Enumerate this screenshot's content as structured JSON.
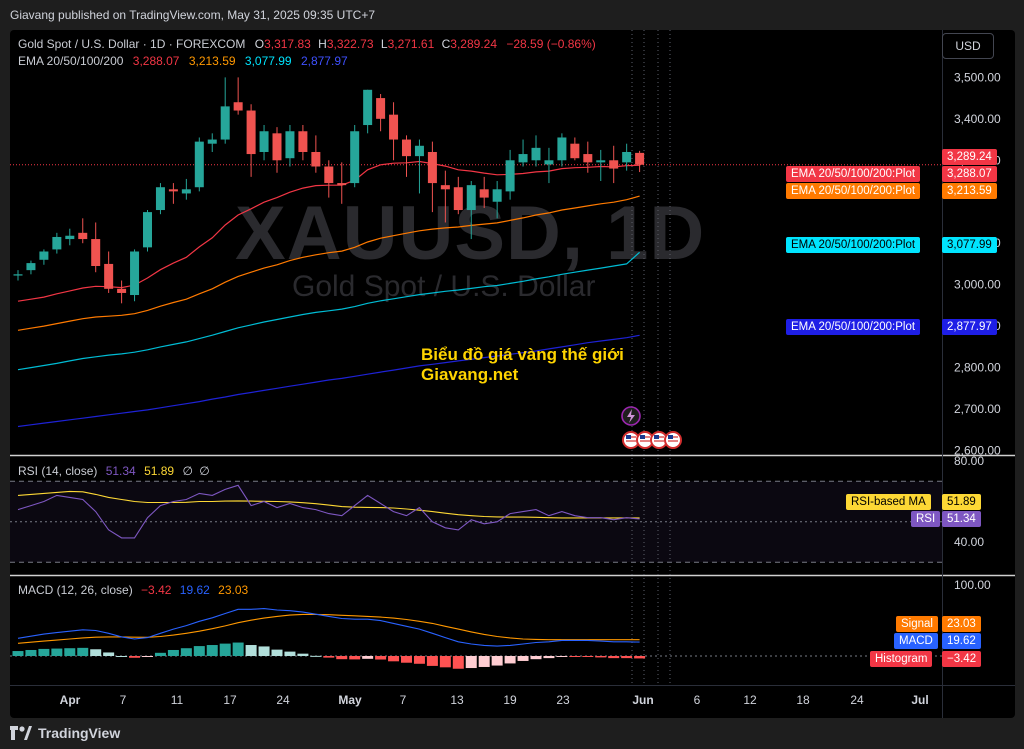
{
  "header": {
    "published": "Giavang published on TradingView.com, May 31, 2025 09:35 UTC+7"
  },
  "toolbar": {
    "currency": "USD"
  },
  "symbol": {
    "title": "Gold Spot / U.S. Dollar · 1D · FOREXCOM",
    "o_label": "O",
    "o": "3,317.83",
    "h_label": "H",
    "h": "3,322.73",
    "l_label": "L",
    "l": "3,271.61",
    "c_label": "C",
    "c": "3,289.24",
    "change": "−28.59 (−0.86%)"
  },
  "ema_legend": {
    "label": "EMA 20/50/100/200",
    "v20": "3,288.07",
    "v50": "3,213.59",
    "v100": "3,077.99",
    "v200": "2,877.97"
  },
  "watermark": {
    "ticker": "XAUUSD, 1D",
    "name": "Gold Spot / U.S. Dollar"
  },
  "annotation": {
    "line1": "Biểu đồ giá vàng thế giới",
    "line2": "Giavang.net"
  },
  "price_axis": [
    "3,500.00",
    "3,400.00",
    "3,300.00",
    "3,100.00",
    "3,000.00",
    "2,900.00",
    "2,800.00",
    "2,700.00",
    "2,600.00"
  ],
  "price_tags": [
    {
      "label": "",
      "value": "3,289.24",
      "color": "#f23645",
      "price": 3289.24
    },
    {
      "label": "EMA 20/50/100/200:Plot",
      "value": "3,288.07",
      "color": "#f23645",
      "price": 3288.07
    },
    {
      "label": "EMA 20/50/100/200:Plot",
      "value": "3,213.59",
      "color": "#ff7a00",
      "price": 3213.59
    },
    {
      "label": "EMA 20/50/100/200:Plot",
      "value": "3,077.99",
      "color": "#00e5ff",
      "price": 3077.99
    },
    {
      "label": "EMA 20/50/100/200:Plot",
      "value": "2,877.97",
      "color": "#1e1ee6",
      "price": 2877.97
    }
  ],
  "rsi": {
    "legend": "RSI (14, close)",
    "value": "51.34",
    "ma": "51.89",
    "na1": "∅",
    "na2": "∅",
    "axis": [
      "80.00",
      "40.00"
    ],
    "tag_ma_label": "RSI-based MA",
    "tag_ma_value": "51.89",
    "tag_rsi_label": "RSI",
    "tag_rsi_value": "51.34",
    "colors": {
      "rsi": "#7e57c2",
      "ma": "#fdd835"
    }
  },
  "macd": {
    "legend": "MACD (12, 26, close)",
    "hist": "−3.42",
    "macd": "19.62",
    "signal": "23.03",
    "axis": [
      "100.00"
    ],
    "tag_signal_label": "Signal",
    "tag_signal_value": "23.03",
    "tag_macd_label": "MACD",
    "tag_macd_value": "19.62",
    "tag_hist_label": "Histogram",
    "tag_hist_value": "−3.42"
  },
  "time_axis": [
    "Apr",
    "7",
    "11",
    "17",
    "24",
    "May",
    "7",
    "13",
    "19",
    "23",
    "Jun",
    "6",
    "12",
    "18",
    "24",
    "Jul"
  ],
  "footer": {
    "brand": "TradingView"
  },
  "chart_data": {
    "type": "candlestick",
    "title": "Gold Spot / U.S. Dollar · 1D · FOREXCOM",
    "ylim": [
      2560,
      3560
    ],
    "ohlc": [
      [
        3022,
        3035,
        3010,
        3025
      ],
      [
        3035,
        3058,
        3025,
        3052
      ],
      [
        3060,
        3085,
        3048,
        3080
      ],
      [
        3085,
        3125,
        3075,
        3115
      ],
      [
        3110,
        3135,
        3095,
        3118
      ],
      [
        3125,
        3160,
        3100,
        3110
      ],
      [
        3110,
        3150,
        3030,
        3045
      ],
      [
        3050,
        3080,
        2980,
        2990
      ],
      [
        2990,
        3010,
        2955,
        2980
      ],
      [
        2975,
        3085,
        2960,
        3080
      ],
      [
        3090,
        3180,
        3080,
        3175
      ],
      [
        3180,
        3245,
        3170,
        3235
      ],
      [
        3230,
        3245,
        3195,
        3225
      ],
      [
        3220,
        3255,
        3205,
        3230
      ],
      [
        3235,
        3355,
        3225,
        3345
      ],
      [
        3340,
        3365,
        3320,
        3350
      ],
      [
        3350,
        3500,
        3340,
        3430
      ],
      [
        3440,
        3500,
        3410,
        3420
      ],
      [
        3420,
        3435,
        3260,
        3315
      ],
      [
        3320,
        3385,
        3300,
        3370
      ],
      [
        3365,
        3380,
        3270,
        3300
      ],
      [
        3305,
        3385,
        3285,
        3370
      ],
      [
        3370,
        3385,
        3300,
        3320
      ],
      [
        3320,
        3360,
        3270,
        3285
      ],
      [
        3285,
        3300,
        3210,
        3245
      ],
      [
        3245,
        3295,
        3195,
        3240
      ],
      [
        3245,
        3385,
        3235,
        3370
      ],
      [
        3385,
        3470,
        3365,
        3470
      ],
      [
        3450,
        3460,
        3370,
        3400
      ],
      [
        3410,
        3440,
        3300,
        3350
      ],
      [
        3350,
        3360,
        3260,
        3310
      ],
      [
        3310,
        3350,
        3220,
        3335
      ],
      [
        3320,
        3345,
        3175,
        3245
      ],
      [
        3240,
        3275,
        3150,
        3230
      ],
      [
        3235,
        3260,
        3170,
        3180
      ],
      [
        3180,
        3250,
        3110,
        3240
      ],
      [
        3230,
        3260,
        3185,
        3210
      ],
      [
        3200,
        3250,
        3160,
        3230
      ],
      [
        3225,
        3325,
        3205,
        3300
      ],
      [
        3295,
        3350,
        3285,
        3315
      ],
      [
        3300,
        3360,
        3285,
        3330
      ],
      [
        3290,
        3330,
        3245,
        3300
      ],
      [
        3300,
        3365,
        3285,
        3355
      ],
      [
        3340,
        3355,
        3300,
        3305
      ],
      [
        3315,
        3345,
        3270,
        3295
      ],
      [
        3295,
        3325,
        3250,
        3300
      ],
      [
        3300,
        3335,
        3245,
        3280
      ],
      [
        3295,
        3340,
        3275,
        3320
      ],
      [
        3317.83,
        3322.73,
        3271.61,
        3289.24
      ]
    ],
    "ema": [
      {
        "name": "EMA 20",
        "color": "#f23645",
        "values": [
          2960,
          2965,
          2970,
          2978,
          2985,
          2992,
          2996,
          2995,
          2993,
          2999,
          3016,
          3036,
          3052,
          3066,
          3091,
          3113,
          3144,
          3168,
          3183,
          3199,
          3210,
          3223,
          3233,
          3239,
          3240,
          3240,
          3252,
          3277,
          3289,
          3293,
          3294,
          3297,
          3292,
          3286,
          3277,
          3274,
          3269,
          3265,
          3266,
          3268,
          3272,
          3274,
          3280,
          3282,
          3283,
          3285,
          3284,
          3287,
          3288
        ]
      },
      {
        "name": "EMA 50",
        "color": "#ff7a00",
        "values": [
          2890,
          2895,
          2900,
          2906,
          2912,
          2918,
          2922,
          2924,
          2926,
          2930,
          2938,
          2948,
          2957,
          2965,
          2978,
          2990,
          3006,
          3020,
          3030,
          3040,
          3048,
          3058,
          3066,
          3072,
          3077,
          3081,
          3090,
          3103,
          3112,
          3118,
          3124,
          3130,
          3134,
          3137,
          3139,
          3143,
          3146,
          3149,
          3155,
          3161,
          3168,
          3173,
          3180,
          3185,
          3190,
          3195,
          3199,
          3205,
          3213.59
        ]
      },
      {
        "name": "EMA 100",
        "color": "#00bcd4",
        "values": [
          2795,
          2800,
          2805,
          2810,
          2816,
          2822,
          2826,
          2830,
          2833,
          2837,
          2843,
          2850,
          2856,
          2862,
          2870,
          2878,
          2887,
          2896,
          2903,
          2910,
          2916,
          2922,
          2928,
          2933,
          2937,
          2941,
          2947,
          2955,
          2961,
          2966,
          2971,
          2976,
          2980,
          2984,
          2987,
          2991,
          2995,
          2998,
          3003,
          3008,
          3014,
          3019,
          3025,
          3030,
          3035,
          3040,
          3045,
          3050,
          3077.99
        ]
      },
      {
        "name": "EMA 200",
        "color": "#1e22d6",
        "values": [
          2658,
          2662,
          2666,
          2670,
          2674,
          2678,
          2682,
          2686,
          2690,
          2694,
          2698,
          2703,
          2708,
          2713,
          2718,
          2724,
          2729,
          2735,
          2740,
          2745,
          2750,
          2755,
          2760,
          2765,
          2770,
          2774,
          2779,
          2784,
          2789,
          2794,
          2799,
          2804,
          2808,
          2812,
          2816,
          2820,
          2824,
          2828,
          2832,
          2836,
          2840,
          2845,
          2850,
          2855,
          2860,
          2864,
          2868,
          2872,
          2877.97
        ]
      }
    ],
    "rsi_values": [
      56,
      58,
      60,
      63,
      62,
      61,
      55,
      46,
      42,
      42,
      52,
      58,
      60,
      61,
      64,
      63,
      66,
      68,
      58,
      60,
      57,
      59,
      57,
      56,
      54,
      53,
      58,
      63,
      59,
      55,
      53,
      57,
      50,
      47,
      46,
      51,
      49,
      50,
      54,
      55,
      56,
      53,
      55,
      53,
      52,
      52,
      51,
      52,
      51.34
    ],
    "rsi_ma_values": [
      63,
      63.5,
      64,
      64.5,
      65,
      64.8,
      63.5,
      62,
      61,
      60,
      59.5,
      59.5,
      59.5,
      59.6,
      60,
      60,
      60.2,
      60.3,
      60.2,
      60.1,
      60,
      59.8,
      59.4,
      58.9,
      58.2,
      57.5,
      57.2,
      57.1,
      57,
      56.8,
      56.3,
      55.7,
      55,
      54.2,
      53.5,
      53,
      52.6,
      52.4,
      52.3,
      52.3,
      52.2,
      52,
      51.9,
      51.9,
      51.9,
      51.9,
      51.9,
      51.9,
      51.89
    ],
    "macd_values": [
      25,
      28,
      31,
      33,
      35,
      37,
      36,
      32,
      27,
      24,
      26,
      32,
      38,
      43,
      49,
      54,
      60,
      66,
      66,
      67,
      65,
      64,
      62,
      59,
      56,
      53,
      52,
      52,
      50,
      46,
      42,
      38,
      32,
      26,
      20,
      17,
      15,
      14,
      15,
      17,
      19,
      20,
      22,
      22,
      22,
      21,
      20,
      20,
      19.62
    ],
    "signal_values": [
      18,
      19.5,
      21,
      22.5,
      24,
      25.5,
      26.5,
      27,
      27,
      26.5,
      26.4,
      27.5,
      29.5,
      32,
      35,
      38.5,
      42.5,
      47,
      50.5,
      53.5,
      56,
      57.8,
      58.7,
      58.8,
      58.3,
      57.5,
      56.8,
      56,
      55,
      53.5,
      51.5,
      49,
      46,
      42,
      38,
      34,
      30.5,
      27.5,
      25.5,
      24,
      23.5,
      23,
      23,
      23,
      23,
      23,
      23,
      23,
      23.03
    ],
    "hist_values": [
      7,
      8.5,
      10,
      10.5,
      11,
      11.5,
      9.5,
      5,
      0,
      -2.5,
      -0.4,
      4.5,
      8.5,
      11,
      14,
      15.5,
      17.5,
      19,
      15.5,
      13.5,
      9,
      6.2,
      3.3,
      0.2,
      -2.3,
      -4.5,
      -4.8,
      -4,
      -5,
      -7.5,
      -9.5,
      -11,
      -14,
      -16,
      -18,
      -17,
      -15.5,
      -13.5,
      -10.5,
      -7,
      -4.5,
      -3,
      -1,
      -1,
      -1,
      -2,
      -3,
      -3,
      -3.42
    ]
  }
}
